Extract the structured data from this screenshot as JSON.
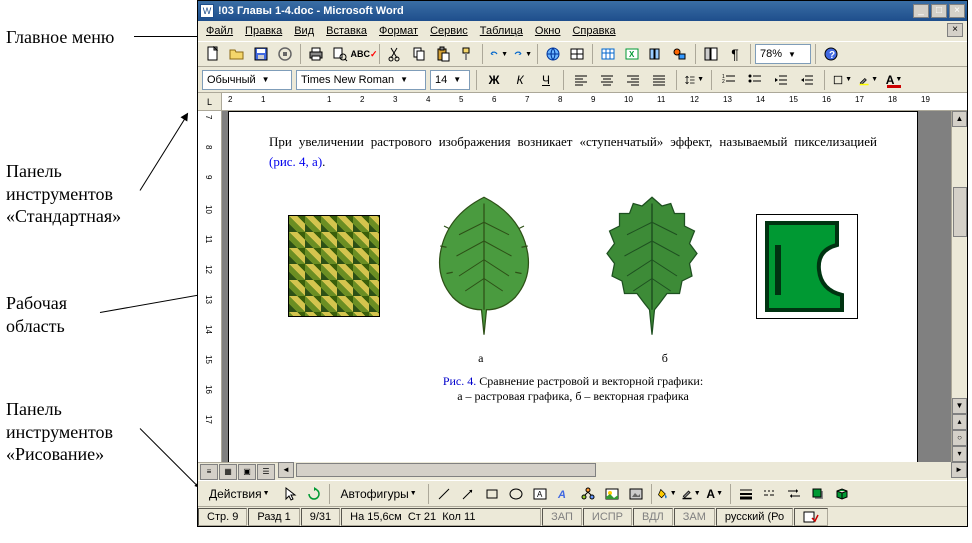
{
  "callouts": {
    "menu": "Главное меню",
    "standard": "Панель\nинструментов\n«Стандартная»",
    "workarea": "Рабочая\nобласть",
    "drawing": "Панель\nинструментов\n«Рисование»"
  },
  "titlebar": {
    "title": "!03 Главы 1-4.doc - Microsoft Word"
  },
  "menu": {
    "items": [
      "Файл",
      "Правка",
      "Вид",
      "Вставка",
      "Формат",
      "Сервис",
      "Таблица",
      "Окно",
      "Справка"
    ]
  },
  "standard_toolbar": {
    "zoom": "78%"
  },
  "format_toolbar": {
    "style": "Обычный",
    "font": "Times New Roman",
    "size": "14"
  },
  "ruler": {
    "h_numbers": [
      "2",
      "1",
      "",
      "1",
      "2",
      "3",
      "4",
      "5",
      "6",
      "7",
      "8",
      "9",
      "10",
      "11",
      "12",
      "13",
      "14",
      "15",
      "16",
      "17",
      "18",
      "19"
    ],
    "v_numbers": [
      "7",
      "8",
      "9",
      "10",
      "11",
      "12",
      "13",
      "14",
      "15",
      "16",
      "17"
    ]
  },
  "document": {
    "paragraph_pre": "При увеличении растрового изображения возникает «ступенчатый» эффект, называемый пикселизацией ",
    "paragraph_link": "(рис. 4, а)",
    "paragraph_post": ".",
    "label_a": "а",
    "label_b": "б",
    "caption_prefix": "Рис. 4.",
    "caption_line1": " Сравнение растровой и векторной графики:",
    "caption_line2": "а – растровая графика, б – векторная графика",
    "leaf_color": "#3d8b37",
    "leaf_dark": "#1e5020",
    "vector_green": "#009933",
    "vector_border": "#003311"
  },
  "drawing_toolbar": {
    "actions_label": "Действия",
    "autoshapes_label": "Автофигуры"
  },
  "statusbar": {
    "page": "Стр. 9",
    "section": "Разд 1",
    "pages": "9/31",
    "position": "На 15,6см",
    "line": "Ст 21",
    "col": "Кол 11",
    "rec": "ЗАП",
    "trk": "ИСПР",
    "ext": "ВДЛ",
    "ovr": "ЗАМ",
    "lang": "русский (Ро"
  }
}
